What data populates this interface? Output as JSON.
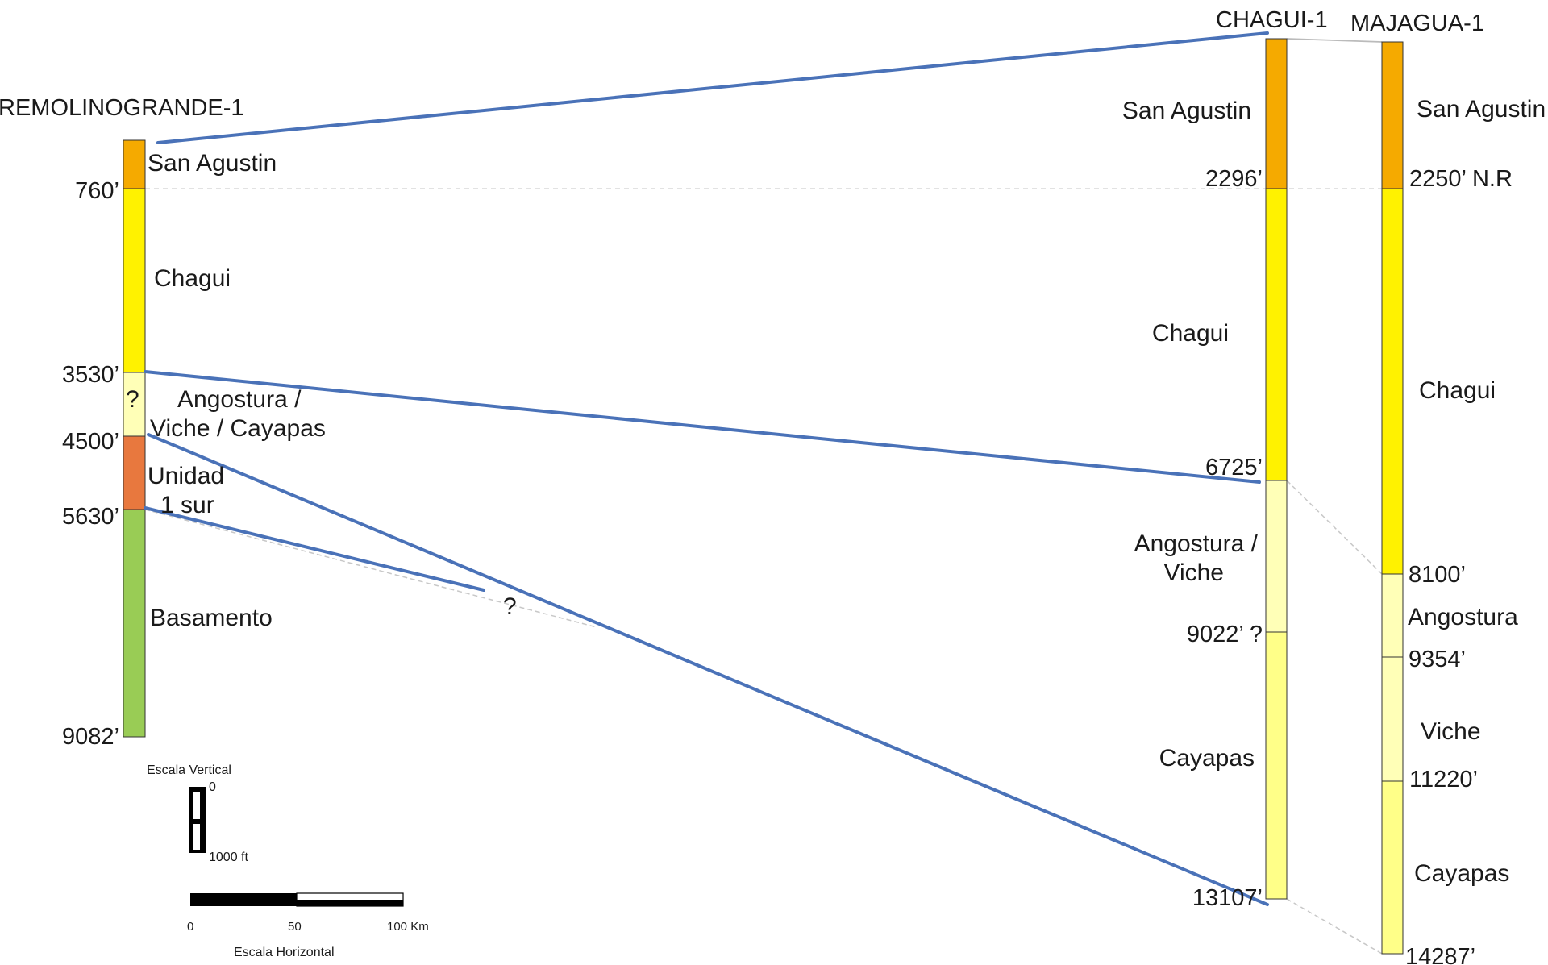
{
  "colors": {
    "san_agustin": "#F5AA00",
    "chagui": "#FFF200",
    "angostura_viche": "#FFFFB7",
    "cayapas": "#FFFF88",
    "unidad_1_sur": "#E8783E",
    "basamento": "#99CC55",
    "correlation_line": "#4A72B8",
    "tie_line": "#BBBBBB"
  },
  "wells": {
    "remolino": {
      "name": "REMOLINOGRANDE-1",
      "units": {
        "san_agustin": "San Agustin",
        "chagui": "Chagui",
        "angostura": "Angostura /\nViche / Cayapas",
        "unidad": "Unidad\n1 sur",
        "basamento": "Basamento",
        "question": "?"
      },
      "depths": {
        "d760": "760’",
        "d3530": "3530’",
        "d4500": "4500’",
        "d5630": "5630’",
        "d9082": "9082’"
      }
    },
    "chagui": {
      "name": "CHAGUI-1",
      "units": {
        "san_agustin": "San Agustin",
        "chagui": "Chagui",
        "angostura": "Angostura /\nViche",
        "cayapas": "Cayapas"
      },
      "depths": {
        "d2296": "2296’",
        "d6725": "6725’",
        "d9022": "9022’ ?",
        "d13107": "13107’"
      }
    },
    "majagua": {
      "name": "MAJAGUA-1",
      "units": {
        "san_agustin": "San Agustin",
        "chagui": "Chagui",
        "angostura": "Angostura",
        "viche": "Viche",
        "cayapas": "Cayapas"
      },
      "depths": {
        "d2250": "2250’ N.R",
        "d8100": "8100’",
        "d9354": "9354’",
        "d11220": "11220’",
        "d14287": "14287’"
      }
    }
  },
  "correlation_question": "?",
  "vertical_scale": {
    "title": "Escala Vertical",
    "zero": "0",
    "max": "1000 ft"
  },
  "horizontal_scale": {
    "title": "Escala Horizontal",
    "ticks": [
      "0",
      "50",
      "100 Km"
    ]
  }
}
